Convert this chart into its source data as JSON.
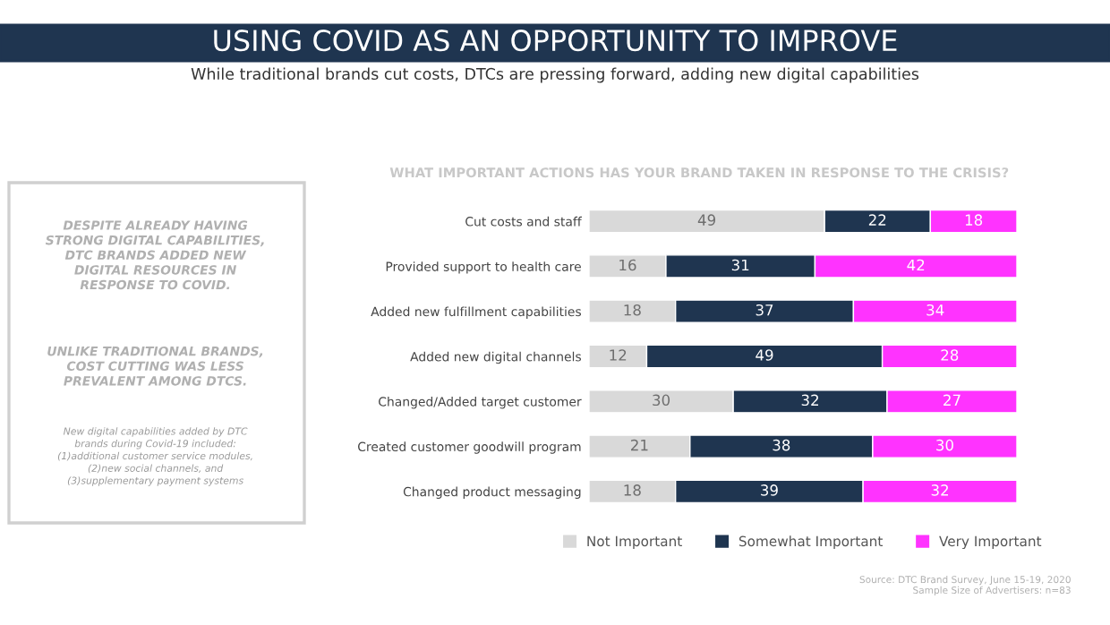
{
  "chart_data": {
    "type": "bar",
    "orientation": "horizontal",
    "stacked": true,
    "data_labels": true,
    "legend": "bottom",
    "tick_labels": "y",
    "title": "USING COVID AS AN OPPORTUNITY TO IMPROVE",
    "subtitle": "While traditional brands cut costs, DTCs are pressing forward, adding new digital capabilities",
    "categories": [
      "Cut costs and staff",
      "Provided support to health care",
      "Added new fulfillment capabilities",
      "Added new digital channels",
      "Changed/Added target customer",
      "Created customer goodwill program",
      "Changed product messaging"
    ],
    "series": [
      {
        "name": "Not Important",
        "color": "#d9d9d9",
        "values": [
          49,
          16,
          18,
          12,
          30,
          21,
          18
        ]
      },
      {
        "name": "Somewhat Important",
        "color": "#1f3550",
        "values": [
          22,
          31,
          37,
          49,
          32,
          38,
          39
        ]
      },
      {
        "name": "Very Important",
        "color": "#ff33ff",
        "values": [
          18,
          42,
          34,
          28,
          27,
          30,
          32
        ]
      }
    ],
    "annotations": [
      "WHAT IMPORTANT ACTIONS HAS YOUR BRAND TAKEN IN RESPONSE TO THE CRISIS?",
      "DESPITE ALREADY HAVING\nSTRONG DIGITAL CAPABILITIES,\nDTC BRANDS ADDED NEW\nDIGITAL RESOURCES IN\nRESPONSE TO COVID.",
      "UNLIKE TRADITIONAL BRANDS,\nCOST CUTTING WAS LESS\nPREVALENT AMONG DTCS.",
      "New digital capabilities added by DTC\nbrands during Covid-19 included:\n(1)additional customer service modules,\n(2)new social channels, and\n(3)supplementary payment systems",
      "Source: DTC Brand Survey, June 15-19, 2020\nSample Size of Advertisers: n=83"
    ]
  }
}
